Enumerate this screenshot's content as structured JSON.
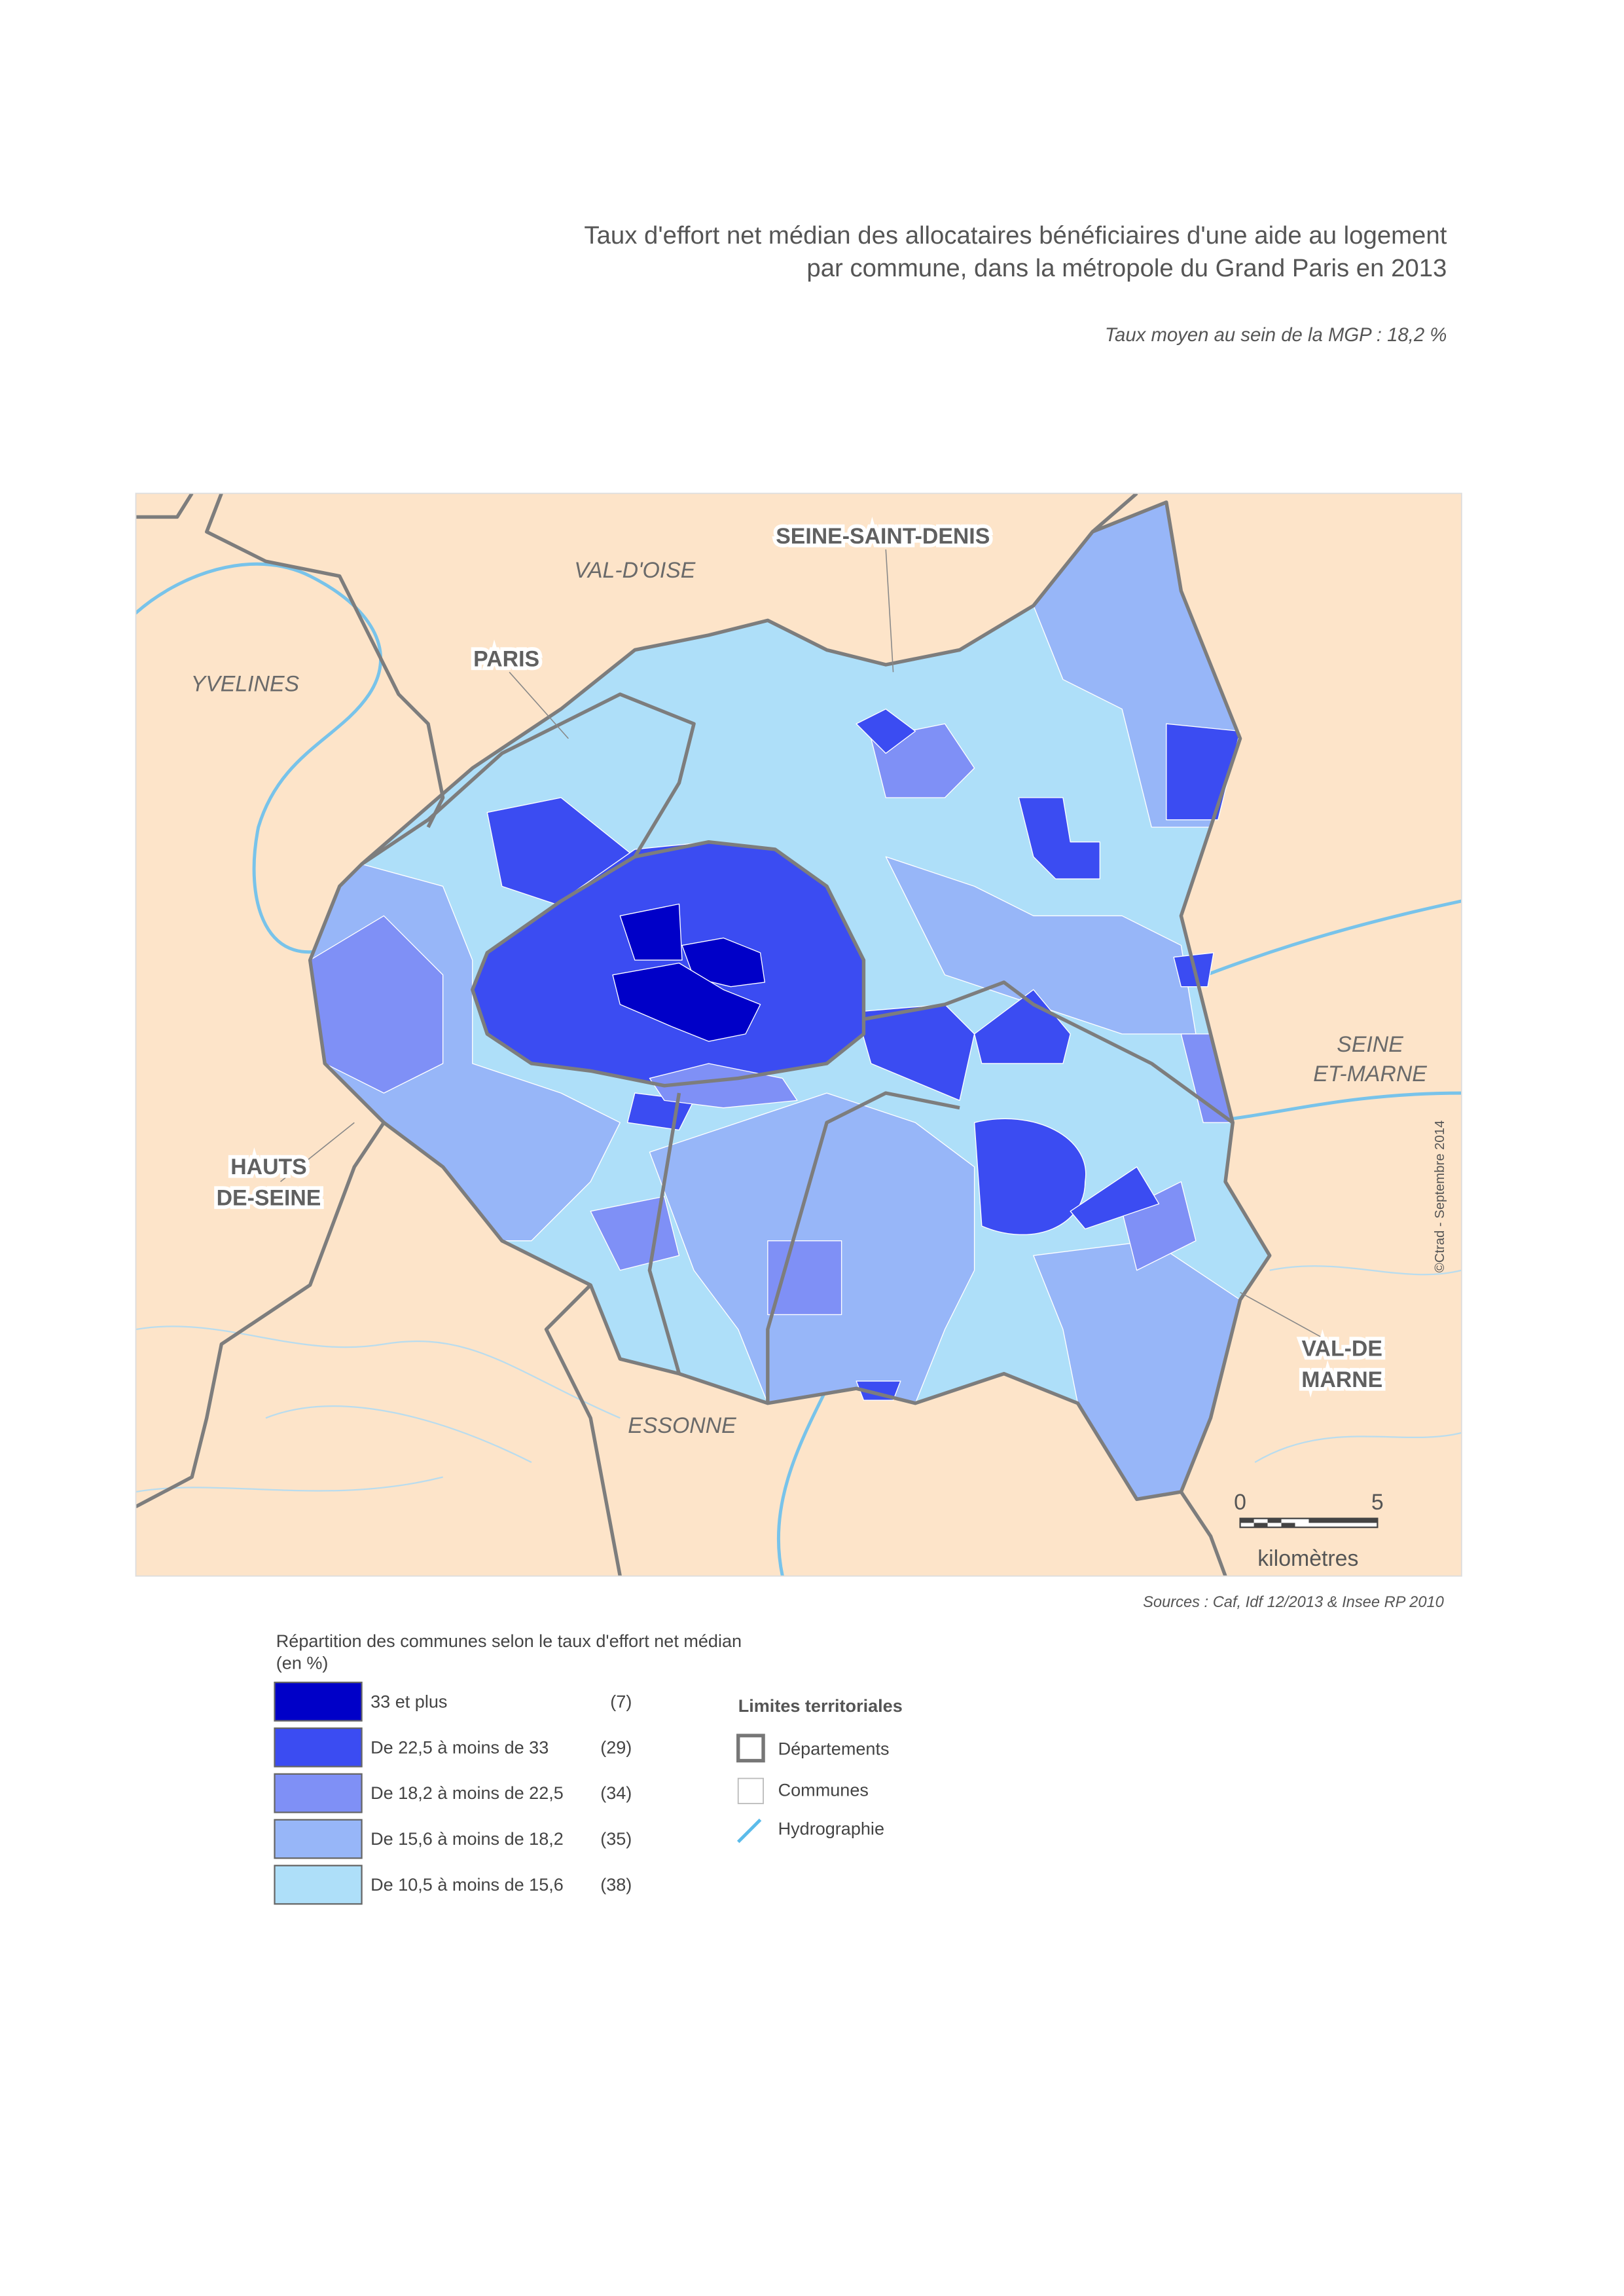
{
  "header": {
    "title": [
      "Taux d'effort net médian des allocataires bénéficiaires d'une aide au logement",
      "par commune, dans la métropole du Grand Paris en 2013"
    ],
    "subtitle": "Taux moyen au sein de la MGP : 18,2 %"
  },
  "map": {
    "labels": {
      "val_doise": "VAL-D'OISE",
      "seine_saint_denis": "SEINE-SAINT-DENIS",
      "paris": "PARIS",
      "yvelines": "YVELINES",
      "seine_et_marne": [
        "SEINE",
        "ET-MARNE"
      ],
      "hauts_de_seine": [
        "HAUTS",
        "DE-SEINE"
      ],
      "essonne": "ESSONNE",
      "val_de_marne": [
        "VAL-DE",
        "MARNE"
      ]
    },
    "scale": {
      "start": "0",
      "end": "5",
      "unit": "kilomètres"
    },
    "credit": "©Ctrad - Septembre 2014",
    "sources": "Sources : Caf, Idf 12/2013 & Insee RP 2010"
  },
  "legend": {
    "title": [
      "Répartition des communes selon le taux d'effort net médian",
      "(en %)"
    ],
    "classes": [
      {
        "label": "33 et plus",
        "count": "(7)",
        "color": "#0000c8"
      },
      {
        "label": "De 22,5 à moins de 33",
        "count": "(29)",
        "color": "#3b4cf2"
      },
      {
        "label": "De 18,2 à moins de 22,5",
        "count": "(34)",
        "color": "#7f90f6"
      },
      {
        "label": "De 15,6 à moins de 18,2",
        "count": "(35)",
        "color": "#97b6f8"
      },
      {
        "label": "De 10,5 à moins de 15,6",
        "count": "(38)",
        "color": "#aedff9"
      }
    ],
    "limits": {
      "title": "Limites territoriales",
      "items": [
        "Départements",
        "Communes",
        "Hydrographie"
      ]
    }
  }
}
